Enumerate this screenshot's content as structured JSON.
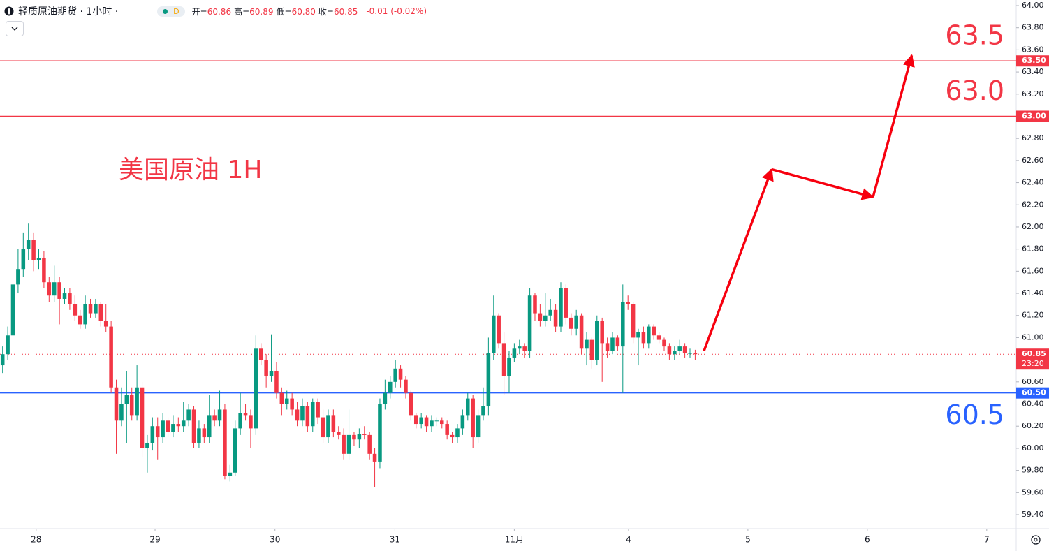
{
  "header": {
    "symbol": "轻质原油期货 · 1小时 ·",
    "badge": "D",
    "ohlc": [
      {
        "label": "开=",
        "value": "60.86"
      },
      {
        "label": "高=",
        "value": "60.89"
      },
      {
        "label": "低=",
        "value": "60.80"
      },
      {
        "label": "收=",
        "value": "60.85"
      }
    ],
    "change": "-0.01 (-0.02%)"
  },
  "chart_data": {
    "type": "candlestick",
    "title": "美国原油 1H",
    "up_color": "#089981",
    "down_color": "#f23645",
    "xlim": [
      -0.5,
      196.1
    ],
    "xticks": [
      {
        "value": 6.5,
        "label": "28"
      },
      {
        "value": 29.5,
        "label": "29"
      },
      {
        "value": 52.7,
        "label": "30"
      },
      {
        "value": 75.9,
        "label": "31"
      },
      {
        "value": 99,
        "label": "11月"
      },
      {
        "value": 121.1,
        "label": "4"
      },
      {
        "value": 144.2,
        "label": "5"
      },
      {
        "value": 167.3,
        "label": "6"
      },
      {
        "value": 190.4,
        "label": "7"
      }
    ],
    "ylim": [
      59.4,
      64.0
    ],
    "yticks": [
      {
        "value": 59.4,
        "label": "59.40"
      },
      {
        "value": 59.6,
        "label": "59.60"
      },
      {
        "value": 59.8,
        "label": "59.80"
      },
      {
        "value": 60.0,
        "label": "60.00"
      },
      {
        "value": 60.2,
        "label": "60.20"
      },
      {
        "value": 60.4,
        "label": "60.40"
      },
      {
        "value": 60.6,
        "label": "60.60"
      },
      {
        "value": 61.0,
        "label": "61.00"
      },
      {
        "value": 61.2,
        "label": "61.20"
      },
      {
        "value": 61.4,
        "label": "61.40"
      },
      {
        "value": 61.6,
        "label": "61.60"
      },
      {
        "value": 61.8,
        "label": "61.80"
      },
      {
        "value": 62.0,
        "label": "62.00"
      },
      {
        "value": 62.2,
        "label": "62.20"
      },
      {
        "value": 62.4,
        "label": "62.40"
      },
      {
        "value": 62.6,
        "label": "62.60"
      },
      {
        "value": 62.8,
        "label": "62.80"
      },
      {
        "value": 63.2,
        "label": "63.20"
      },
      {
        "value": 63.4,
        "label": "63.40"
      },
      {
        "value": 63.6,
        "label": "63.60"
      },
      {
        "value": 63.8,
        "label": "63.80"
      },
      {
        "value": 64.0,
        "label": "64.00"
      }
    ],
    "open": [
      60.75,
      60.85,
      61.02,
      61.48,
      61.62,
      61.8,
      61.88,
      61.7,
      61.72,
      61.5,
      61.38,
      61.5,
      61.35,
      61.4,
      61.3,
      61.2,
      61.12,
      61.3,
      61.22,
      61.3,
      61.15,
      61.1,
      60.55,
      60.25,
      60.4,
      60.48,
      60.3,
      60.55,
      60.0,
      60.05,
      60.2,
      60.1,
      60.25,
      60.15,
      60.22,
      60.2,
      60.25,
      60.35,
      60.05,
      60.18,
      60.1,
      60.3,
      60.25,
      60.35,
      59.75,
      59.78,
      60.18,
      60.32,
      60.3,
      60.18,
      60.9,
      60.8,
      60.65,
      60.7,
      60.5,
      60.4,
      60.45,
      60.35,
      60.25,
      60.38,
      60.2,
      60.42,
      60.28,
      60.1,
      60.3,
      60.15,
      60.12,
      59.95,
      60.12,
      60.08,
      60.13,
      60.12,
      59.95,
      59.88,
      60.4,
      60.5,
      60.6,
      60.72,
      60.62,
      60.5,
      60.3,
      60.22,
      60.28,
      60.2,
      60.25,
      60.25,
      60.22,
      60.12,
      60.1,
      60.18,
      60.3,
      60.45,
      60.1,
      60.3,
      60.38,
      60.86,
      61.2,
      60.95,
      60.65,
      60.82,
      60.9,
      60.92,
      60.88,
      61.38,
      61.22,
      61.15,
      61.2,
      61.25,
      61.1,
      61.45,
      61.18,
      61.08,
      61.2,
      60.9,
      60.98,
      60.8,
      61.15,
      60.95,
      60.88,
      61.0,
      60.92,
      61.32,
      61.3,
      61.0,
      61.05,
      60.95,
      61.1,
      61.02,
      60.98,
      60.92,
      60.85,
      60.88,
      60.92,
      60.86,
      60.86
    ],
    "high": [
      60.92,
      61.1,
      61.55,
      61.8,
      61.95,
      62.03,
      61.95,
      61.8,
      61.78,
      61.55,
      61.65,
      61.55,
      61.45,
      61.45,
      61.38,
      61.25,
      61.38,
      61.35,
      61.35,
      61.32,
      61.3,
      61.15,
      60.62,
      60.55,
      60.7,
      60.55,
      60.75,
      60.6,
      60.12,
      60.28,
      60.28,
      60.32,
      60.28,
      60.3,
      60.28,
      60.42,
      60.4,
      60.38,
      60.25,
      60.22,
      60.48,
      60.35,
      60.52,
      60.4,
      59.85,
      60.25,
      60.5,
      60.4,
      60.35,
      61.02,
      60.95,
      60.85,
      61.03,
      60.78,
      60.55,
      60.52,
      60.5,
      60.42,
      60.45,
      60.42,
      60.45,
      60.45,
      60.35,
      60.35,
      60.35,
      60.2,
      60.18,
      60.35,
      60.15,
      60.18,
      60.2,
      60.15,
      60.0,
      60.45,
      60.62,
      60.65,
      60.8,
      60.75,
      60.65,
      60.52,
      60.32,
      60.32,
      60.3,
      60.3,
      60.28,
      60.28,
      60.25,
      60.15,
      60.22,
      60.35,
      60.5,
      60.48,
      60.35,
      60.55,
      61.0,
      61.38,
      61.22,
      61.05,
      60.88,
      60.95,
      60.98,
      60.95,
      61.45,
      61.4,
      61.3,
      61.4,
      61.35,
      61.3,
      61.5,
      61.48,
      61.22,
      61.25,
      61.22,
      61.05,
      61.0,
      61.2,
      61.18,
      61.0,
      61.05,
      61.02,
      61.48,
      61.38,
      61.32,
      61.08,
      61.1,
      61.12,
      61.12,
      61.05,
      61.0,
      60.95,
      60.92,
      60.98,
      60.95,
      60.9,
      60.89
    ],
    "low": [
      60.68,
      60.8,
      60.98,
      61.4,
      61.55,
      61.7,
      61.6,
      61.62,
      61.45,
      61.32,
      61.32,
      61.12,
      61.3,
      61.25,
      61.15,
      61.08,
      61.08,
      61.18,
      61.18,
      61.1,
      61.05,
      60.5,
      59.95,
      60.2,
      60.05,
      60.25,
      60.25,
      59.92,
      59.78,
      59.98,
      59.9,
      60.05,
      60.1,
      60.1,
      60.15,
      60.15,
      60.2,
      60.0,
      60.0,
      60.05,
      60.05,
      60.2,
      60.2,
      59.72,
      59.7,
      59.75,
      60.12,
      60.25,
      60.0,
      60.12,
      60.75,
      60.55,
      60.6,
      60.45,
      60.3,
      60.35,
      60.3,
      60.2,
      60.2,
      60.15,
      60.15,
      60.22,
      60.05,
      60.05,
      60.1,
      60.08,
      59.9,
      59.9,
      60.02,
      60.0,
      60.08,
      59.9,
      59.65,
      59.82,
      60.35,
      60.45,
      60.55,
      60.55,
      60.45,
      60.25,
      60.18,
      60.18,
      60.15,
      60.15,
      60.2,
      60.18,
      60.08,
      60.05,
      60.05,
      60.12,
      60.25,
      60.0,
      60.05,
      60.25,
      60.3,
      60.8,
      60.9,
      60.48,
      60.5,
      60.78,
      60.85,
      60.82,
      60.82,
      61.15,
      61.1,
      61.1,
      61.15,
      61.05,
      61.05,
      61.12,
      61.02,
      61.02,
      60.85,
      60.75,
      60.72,
      60.75,
      60.6,
      60.82,
      60.85,
      60.88,
      60.5,
      61.25,
      60.95,
      60.75,
      60.9,
      60.9,
      60.98,
      60.95,
      60.88,
      60.8,
      60.8,
      60.85,
      60.82,
      60.82,
      60.8
    ],
    "close": [
      60.85,
      61.02,
      61.48,
      61.62,
      61.8,
      61.88,
      61.7,
      61.72,
      61.5,
      61.38,
      61.5,
      61.35,
      61.4,
      61.3,
      61.2,
      61.12,
      61.3,
      61.22,
      61.3,
      61.15,
      61.1,
      60.55,
      60.25,
      60.4,
      60.48,
      60.3,
      60.55,
      60.0,
      60.05,
      60.2,
      60.1,
      60.25,
      60.15,
      60.22,
      60.2,
      60.25,
      60.35,
      60.05,
      60.18,
      60.1,
      60.3,
      60.25,
      60.35,
      59.75,
      59.78,
      60.18,
      60.32,
      60.3,
      60.18,
      60.9,
      60.8,
      60.65,
      60.7,
      60.5,
      60.4,
      60.45,
      60.35,
      60.25,
      60.38,
      60.2,
      60.42,
      60.28,
      60.1,
      60.3,
      60.15,
      60.12,
      59.95,
      60.12,
      60.08,
      60.13,
      60.12,
      59.95,
      59.88,
      60.4,
      60.5,
      60.6,
      60.72,
      60.62,
      60.5,
      60.3,
      60.22,
      60.28,
      60.2,
      60.25,
      60.25,
      60.22,
      60.12,
      60.1,
      60.18,
      60.3,
      60.45,
      60.1,
      60.3,
      60.38,
      60.86,
      61.2,
      60.95,
      60.65,
      60.82,
      60.9,
      60.92,
      60.88,
      61.38,
      61.22,
      61.15,
      61.2,
      61.25,
      61.1,
      61.45,
      61.18,
      61.08,
      61.2,
      60.9,
      60.98,
      60.8,
      61.15,
      60.95,
      60.88,
      61.0,
      60.92,
      61.32,
      61.3,
      61.0,
      61.05,
      60.95,
      61.1,
      61.02,
      60.98,
      60.92,
      60.85,
      60.88,
      60.92,
      60.86,
      60.86,
      60.85
    ],
    "levels": [
      {
        "value": 63.5,
        "label": "63.5",
        "tag": "63.50",
        "color": "#f23645"
      },
      {
        "value": 63.0,
        "label": "63.0",
        "tag": "63.00",
        "color": "#f23645"
      },
      {
        "value": 60.5,
        "label": "60.5",
        "tag": "60.50",
        "color": "#2962ff"
      }
    ],
    "last_price": {
      "value": 60.85,
      "label": "60.85",
      "countdown": "23:20",
      "color": "#f23645"
    },
    "projection": {
      "color": "#f7000f",
      "x": [
        135.7,
        148.8,
        168.4,
        175.9
      ],
      "values": [
        60.88,
        62.52,
        62.27,
        63.55
      ]
    }
  }
}
